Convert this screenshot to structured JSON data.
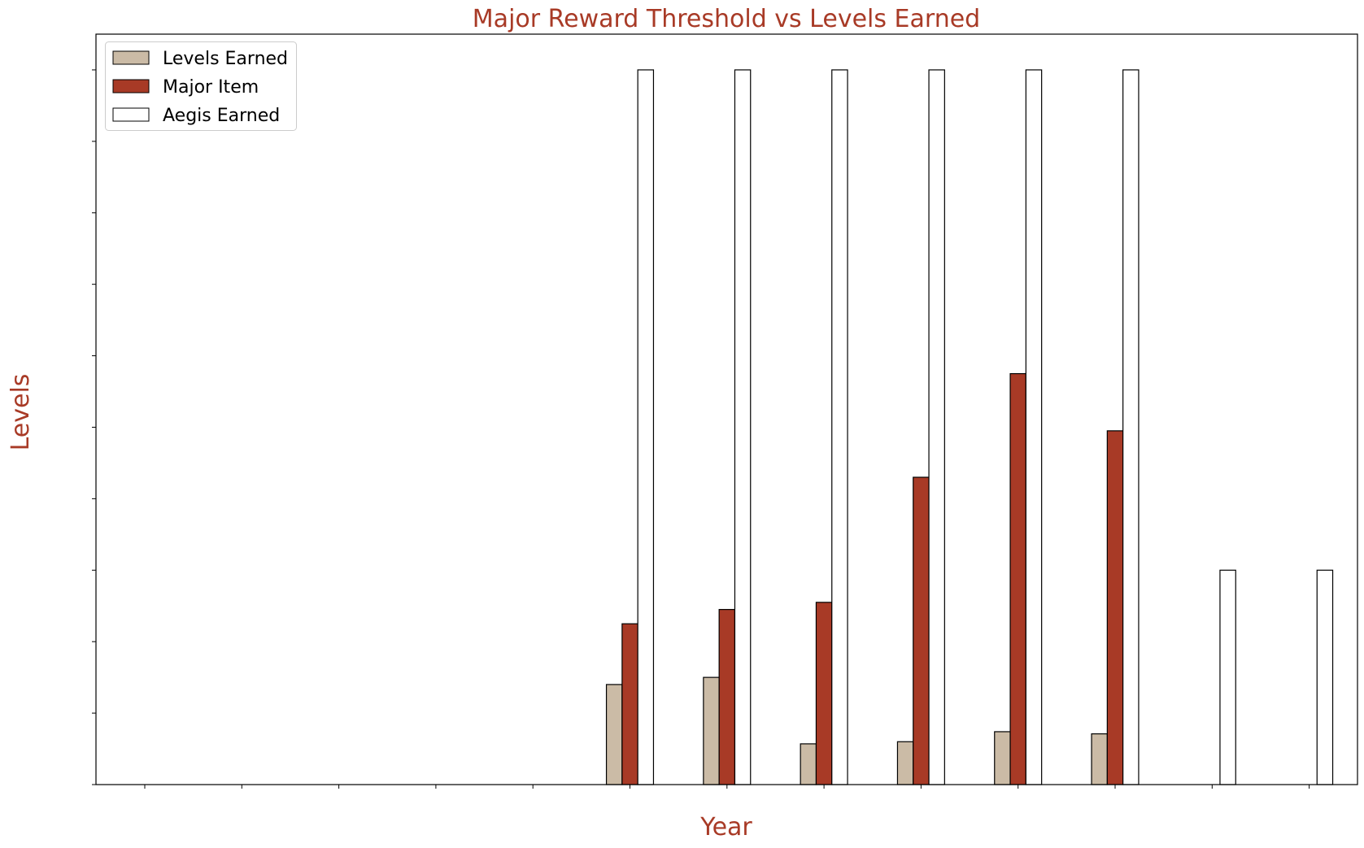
{
  "chart_data": {
    "type": "bar",
    "title": "Major Reward Threshold vs Levels Earned",
    "xlabel": "Year",
    "ylabel": "Levels",
    "categories": [
      "",
      "",
      "",
      "",
      "",
      "",
      "",
      "",
      "",
      "",
      "",
      "",
      ""
    ],
    "ylim": [
      0,
      10.5
    ],
    "grid": false,
    "legend_position": "top-left",
    "tick_labels_visible": false,
    "series": [
      {
        "name": "Levels Earned",
        "color": "#cbbba6",
        "values": [
          0,
          0,
          0,
          0,
          0,
          1.4,
          1.5,
          0.57,
          0.6,
          0.74,
          0.71,
          0,
          0
        ]
      },
      {
        "name": "Major Item",
        "color": "#a83a26",
        "values": [
          0,
          0,
          0,
          0,
          0,
          2.25,
          2.45,
          2.55,
          4.3,
          5.75,
          4.95,
          0,
          0
        ]
      },
      {
        "name": "Aegis Earned",
        "color": "#ffffff",
        "values": [
          0,
          0,
          0,
          0,
          0,
          10,
          10,
          10,
          10,
          10,
          10,
          3,
          3
        ]
      }
    ]
  },
  "colors": {
    "accent": "#a83a26",
    "bar_edge": "#000000"
  }
}
